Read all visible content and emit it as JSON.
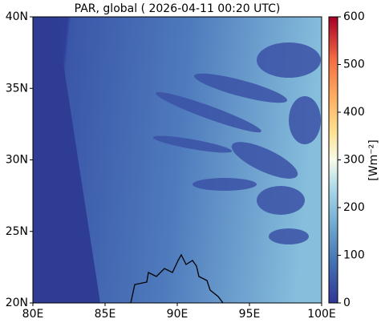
{
  "map": {
    "title": "PAR, global ( 2026-04-11 00:20 UTC)",
    "xlim": [
      80,
      100
    ],
    "xticks": [
      {
        "value": 80,
        "label": "80E"
      },
      {
        "value": 85,
        "label": "85E"
      },
      {
        "value": 90,
        "label": "90E"
      },
      {
        "value": 95,
        "label": "95E"
      },
      {
        "value": 100,
        "label": "100E"
      }
    ],
    "ylim": [
      20,
      40
    ],
    "yticks": [
      {
        "value": 20,
        "label": "20N"
      },
      {
        "value": 25,
        "label": "25N"
      },
      {
        "value": 30,
        "label": "30N"
      },
      {
        "value": 35,
        "label": "35N"
      },
      {
        "value": 40,
        "label": "40N"
      }
    ],
    "colorbar": {
      "lim": [
        0,
        600
      ],
      "ticks": [
        0,
        100,
        200,
        300,
        400,
        500,
        600
      ],
      "label": "[Wm⁻²]"
    }
  }
}
